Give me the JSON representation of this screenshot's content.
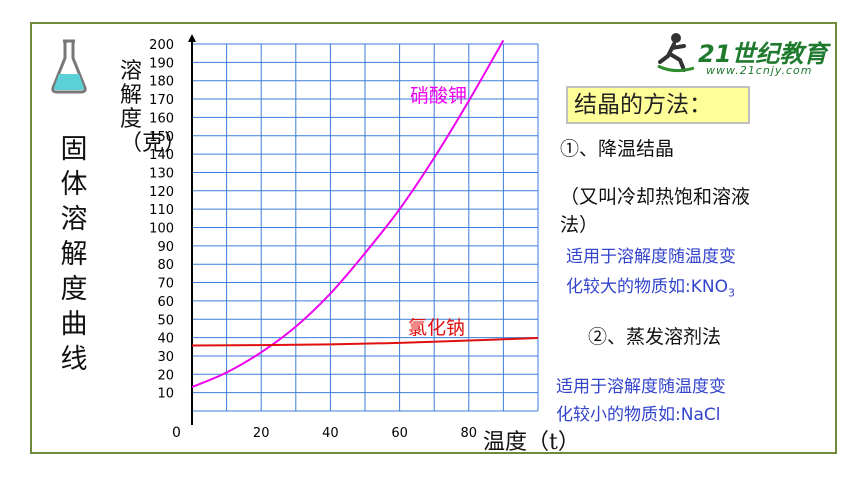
{
  "vertical_title": "固体溶解度曲线",
  "method_title": "结晶的方法：",
  "method1": "①、降温结晶",
  "method1_note_line1": "（又叫冷却热饱和溶液",
  "method1_note_line2": "法）",
  "method1_apply_line1": "适用于溶解度随温度变",
  "method1_apply_line2": "化较大的物质如:KNO",
  "method1_apply_sub": "3",
  "method2": "②、蒸发溶剂法",
  "method2_apply_line1": "适用于溶解度随温度变",
  "method2_apply_line2": "化较小的物质如:NaCl",
  "logo_text": "21世纪教育",
  "logo_url": "www.21cnjy.com",
  "colors": {
    "frame": "#6e8b3d",
    "grid": "#3b7dd8",
    "kno3": "#ee00ee",
    "nacl": "#e01010",
    "box": "#ffff99",
    "blue_text": "#3344cc"
  },
  "chart_data": {
    "type": "line",
    "ylabel": "溶解度（克）",
    "xlabel": "温度（t）",
    "origin_label": "0",
    "x_ticks": [
      "20",
      "40",
      "60",
      "80"
    ],
    "y_ticks": [
      "10",
      "20",
      "30",
      "40",
      "50",
      "60",
      "70",
      "80",
      "90",
      "100",
      "110",
      "120",
      "130",
      "140",
      "150",
      "160",
      "170",
      "180",
      "190",
      "200"
    ],
    "xlim": [
      0,
      100
    ],
    "ylim": [
      0,
      200
    ],
    "grid": true,
    "series": [
      {
        "name": "硝酸钾",
        "color": "#ee00ee",
        "x": [
          0,
          10,
          20,
          30,
          40,
          50,
          60,
          70,
          80,
          90
        ],
        "y": [
          13,
          21,
          32,
          46,
          64,
          86,
          110,
          138,
          169,
          202
        ]
      },
      {
        "name": "氯化钠",
        "color": "#e01010",
        "x": [
          0,
          20,
          40,
          60,
          80,
          100
        ],
        "y": [
          35.7,
          35.9,
          36.3,
          37.1,
          38.4,
          39.8
        ]
      }
    ]
  }
}
